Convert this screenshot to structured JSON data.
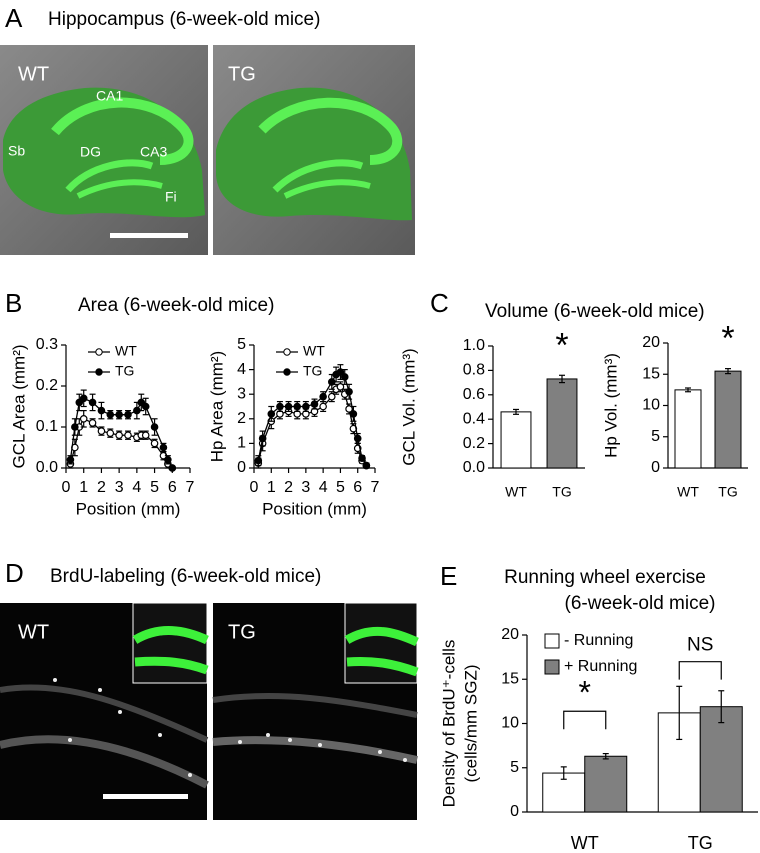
{
  "panel_a": {
    "letter": "A",
    "title": "Hippocampus (6-week-old mice)",
    "image_labels": [
      "WT",
      "TG"
    ],
    "region_labels": [
      "CA1",
      "DG",
      "CA3",
      "Sb",
      "Fi"
    ]
  },
  "panel_b": {
    "letter": "B",
    "title": "Area (6-week-old mice)"
  },
  "panel_c": {
    "letter": "C",
    "title": "Volume (6-week-old mice)"
  },
  "panel_d": {
    "letter": "D",
    "title": "BrdU-labeling (6-week-old mice)",
    "image_labels": [
      "WT",
      "TG"
    ]
  },
  "panel_e": {
    "letter": "E"
  },
  "chart_data": [
    {
      "type": "line",
      "ylabel": "GCL Area (mm²)",
      "xlabel": "Position (mm)",
      "x": [
        0.25,
        0.5,
        0.75,
        1,
        1.5,
        2,
        2.5,
        3,
        3.5,
        4,
        4.25,
        4.5,
        5,
        5.5,
        5.75,
        6
      ],
      "series": [
        {
          "name": "WT",
          "color": "#000000",
          "marker_fill": "#ffffff",
          "values": [
            0.01,
            0.05,
            0.1,
            0.12,
            0.11,
            0.09,
            0.085,
            0.08,
            0.08,
            0.075,
            0.08,
            0.08,
            0.06,
            0.03,
            0.01,
            0.0
          ],
          "errors": [
            0.01,
            0.02,
            0.02,
            0.02,
            0.01,
            0.01,
            0.01,
            0.01,
            0.01,
            0.01,
            0.01,
            0.01,
            0.01,
            0.01,
            0.01,
            0.0
          ]
        },
        {
          "name": "TG",
          "color": "#000000",
          "marker_fill": "#000000",
          "values": [
            0.02,
            0.1,
            0.16,
            0.17,
            0.16,
            0.14,
            0.13,
            0.13,
            0.13,
            0.14,
            0.16,
            0.15,
            0.1,
            0.05,
            0.02,
            0.0
          ],
          "errors": [
            0.01,
            0.02,
            0.02,
            0.02,
            0.02,
            0.02,
            0.01,
            0.01,
            0.01,
            0.02,
            0.02,
            0.02,
            0.02,
            0.01,
            0.01,
            0.0
          ]
        }
      ],
      "xlim": [
        0,
        7
      ],
      "xticks": [
        0,
        1,
        2,
        3,
        4,
        5,
        6,
        7
      ],
      "ylim": [
        0,
        0.3
      ],
      "yticks": [
        {
          "value": 0,
          "label": "0.0"
        },
        0.1,
        0.2,
        0.3
      ]
    },
    {
      "type": "line",
      "ylabel": "Hp Area (mm²)",
      "xlabel": "Position (mm)",
      "x": [
        0.25,
        0.5,
        1,
        1.5,
        2,
        2.5,
        3,
        3.5,
        4,
        4.5,
        4.75,
        5,
        5.25,
        5.5,
        5.75,
        6,
        6.25,
        6.5
      ],
      "series": [
        {
          "name": "WT",
          "color": "#000000",
          "marker_fill": "#ffffff",
          "values": [
            0.2,
            1.0,
            1.9,
            2.2,
            2.3,
            2.2,
            2.2,
            2.3,
            2.5,
            2.9,
            3.2,
            3.3,
            3.0,
            2.4,
            1.6,
            0.8,
            0.3,
            0.1
          ],
          "errors": [
            0.2,
            0.3,
            0.3,
            0.2,
            0.2,
            0.2,
            0.2,
            0.2,
            0.2,
            0.2,
            0.2,
            0.2,
            0.2,
            0.2,
            0.2,
            0.2,
            0.1,
            0.1
          ]
        },
        {
          "name": "TG",
          "color": "#000000",
          "marker_fill": "#000000",
          "values": [
            0.3,
            1.2,
            2.2,
            2.5,
            2.5,
            2.5,
            2.5,
            2.6,
            2.9,
            3.5,
            3.8,
            3.9,
            3.7,
            3.1,
            2.2,
            1.2,
            0.4,
            0.1
          ],
          "errors": [
            0.2,
            0.3,
            0.3,
            0.2,
            0.2,
            0.2,
            0.2,
            0.2,
            0.2,
            0.3,
            0.3,
            0.3,
            0.3,
            0.3,
            0.3,
            0.2,
            0.1,
            0.1
          ]
        }
      ],
      "xlim": [
        0,
        7
      ],
      "xticks": [
        0,
        1,
        2,
        3,
        4,
        5,
        6,
        7
      ],
      "ylim": [
        0,
        5
      ],
      "yticks": [
        0,
        1,
        2,
        3,
        4,
        5
      ]
    },
    {
      "type": "bar",
      "ylabel": "GCL Vol. (mm³)",
      "categories": [
        "WT",
        "TG"
      ],
      "values": [
        0.46,
        0.73
      ],
      "errors": [
        0.02,
        0.03
      ],
      "colors": [
        "#ffffff",
        "#808080"
      ],
      "annotation": "*",
      "ylim": [
        0,
        1
      ],
      "yticks": [
        {
          "value": 0,
          "label": "0.0"
        },
        0.2,
        0.4,
        0.6,
        0.8,
        {
          "value": 1,
          "label": "1.0"
        }
      ]
    },
    {
      "type": "bar",
      "ylabel": "Hp Vol. (mm³)",
      "categories": [
        "WT",
        "TG"
      ],
      "values": [
        12.5,
        15.5
      ],
      "errors": [
        0.3,
        0.4
      ],
      "colors": [
        "#ffffff",
        "#808080"
      ],
      "annotation": "*",
      "ylim": [
        0,
        20
      ],
      "yticks": [
        0,
        5,
        10,
        15,
        20
      ]
    },
    {
      "type": "grouped_bar",
      "title": "Running wheel exercise",
      "subtitle": "(6-week-old mice)",
      "ylabel": [
        "Density of BrdU⁺-cells",
        "(cells/mm SGZ)"
      ],
      "categories": [
        "WT",
        "TG"
      ],
      "series": [
        {
          "name": "-  Running",
          "color": "#ffffff",
          "values": [
            4.4,
            11.2
          ],
          "errors": [
            0.7,
            3.0
          ]
        },
        {
          "name": "+ Running",
          "color": "#808080",
          "values": [
            6.3,
            11.9
          ],
          "errors": [
            0.3,
            1.8
          ]
        }
      ],
      "annotations": [
        "*",
        "NS"
      ],
      "ylim": [
        0,
        20
      ],
      "yticks": [
        0,
        5,
        10,
        15,
        20
      ]
    }
  ]
}
